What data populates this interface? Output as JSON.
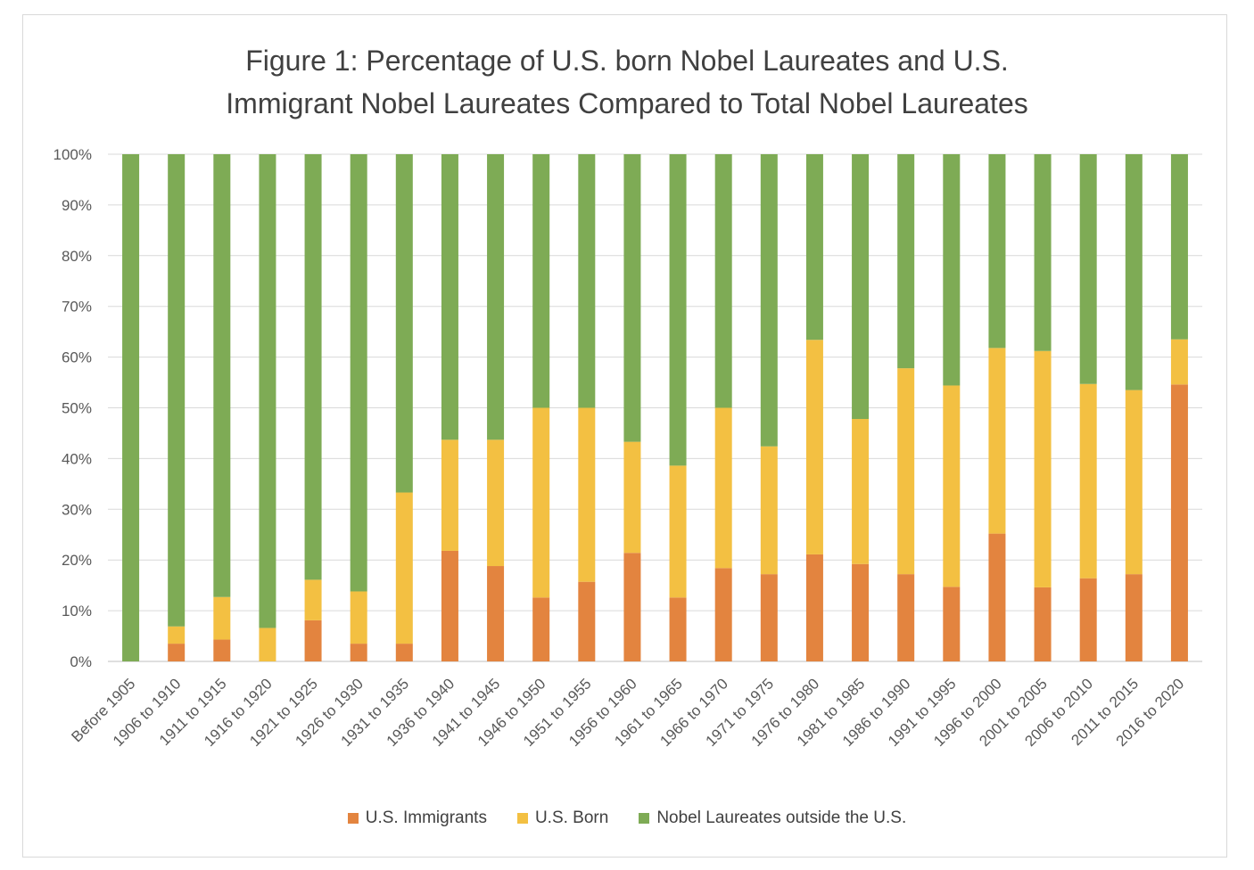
{
  "chart_data": {
    "type": "bar",
    "stacked": true,
    "title": "Figure 1: Percentage of U.S. born Nobel Laureates and U.S. Immigrant Nobel Laureates Compared to Total Nobel Laureates",
    "categories": [
      "Before 1905",
      "1906 to 1910",
      "1911 to 1915",
      "1916 to 1920",
      "1921 to 1925",
      "1926 to 1930",
      "1931 to 1935",
      "1936 to 1940",
      "1941 to 1945",
      "1946 to 1950",
      "1951 to 1955",
      "1956 to 1960",
      "1961 to 1965",
      "1966 to 1970",
      "1971 to 1975",
      "1976 to 1980",
      "1981 to 1985",
      "1986 to 1990",
      "1991 to 1995",
      "1996 to 2000",
      "2001 to 2005",
      "2006 to 2010",
      "2011 to 2015",
      "2016 to 2020"
    ],
    "series": [
      {
        "name": "U.S. Immigrants",
        "color": "#e3843f",
        "values": [
          0,
          3.5,
          4.3,
          0,
          8.1,
          3.5,
          3.5,
          21.8,
          18.8,
          12.6,
          15.7,
          21.4,
          12.6,
          18.4,
          17.2,
          21.1,
          19.2,
          17.2,
          14.7,
          25.2,
          14.6,
          16.4,
          17.2,
          54.6
        ]
      },
      {
        "name": "U.S. Born",
        "color": "#f3c042",
        "values": [
          0,
          3.4,
          8.4,
          6.6,
          8.0,
          10.3,
          29.8,
          21.9,
          24.9,
          37.4,
          34.3,
          21.9,
          26.0,
          31.6,
          25.2,
          42.3,
          28.6,
          40.6,
          39.7,
          36.6,
          46.6,
          38.3,
          36.3,
          8.9
        ]
      },
      {
        "name": "Nobel Laureates outside the U.S.",
        "color": "#7eab55",
        "values": [
          100,
          93.1,
          87.3,
          93.4,
          83.9,
          86.2,
          66.7,
          56.3,
          56.3,
          50.0,
          50.0,
          56.7,
          61.4,
          50.0,
          57.6,
          36.6,
          52.2,
          42.2,
          45.6,
          38.2,
          38.8,
          45.3,
          46.5,
          36.5
        ]
      }
    ],
    "yticks": [
      "0%",
      "10%",
      "20%",
      "30%",
      "40%",
      "50%",
      "60%",
      "70%",
      "80%",
      "90%",
      "100%"
    ],
    "ylim": [
      0,
      100
    ],
    "grid": true,
    "legend_position": "bottom"
  }
}
